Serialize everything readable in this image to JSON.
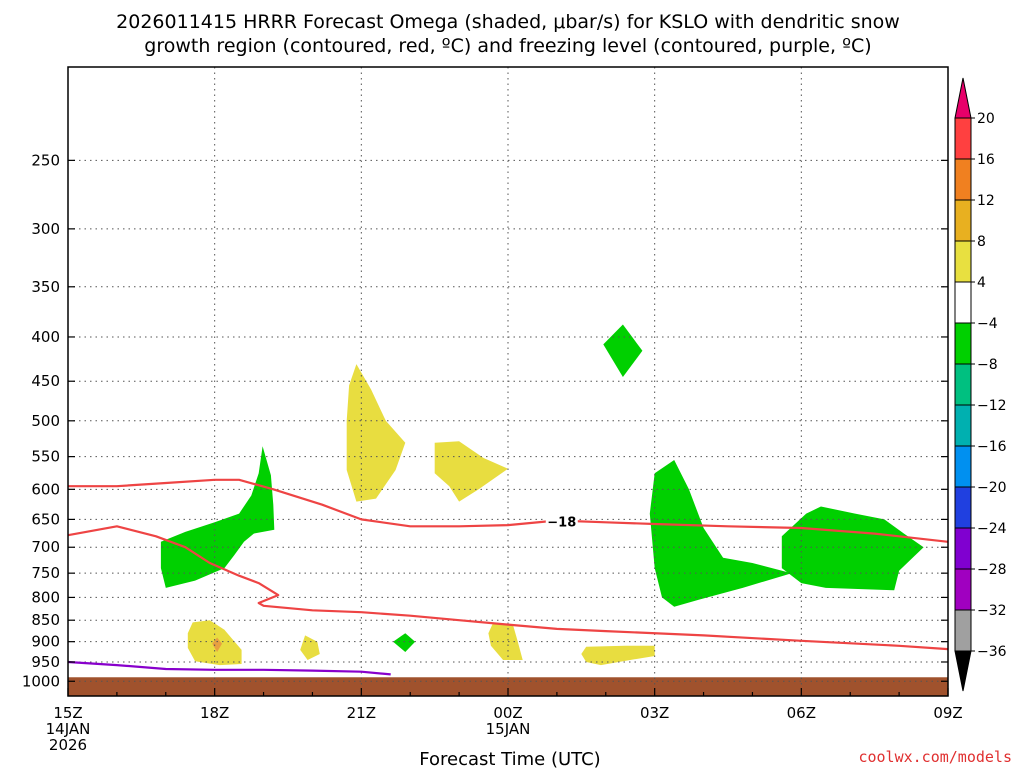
{
  "chart_data": {
    "type": "heatmap",
    "title_lines": [
      "2026011415 HRRR Forecast Omega (shaded, μbar/s) for KSLO with dendritic snow",
      "growth region (contoured, red, ºC) and freezing level (contoured, purple, ºC)"
    ],
    "xlabel": "Forecast Time (UTC)",
    "credit": "coolwx.com/models",
    "x_ticks": [
      {
        "h": 0,
        "lines": [
          "15Z",
          "14JAN",
          "2026"
        ]
      },
      {
        "h": 3,
        "lines": [
          "18Z"
        ]
      },
      {
        "h": 6,
        "lines": [
          "21Z"
        ]
      },
      {
        "h": 9,
        "lines": [
          "00Z",
          "15JAN"
        ]
      },
      {
        "h": 12,
        "lines": [
          "03Z"
        ]
      },
      {
        "h": 15,
        "lines": [
          "06Z"
        ]
      },
      {
        "h": 18,
        "lines": [
          "09Z"
        ]
      }
    ],
    "xlim": [
      0,
      18
    ],
    "ylim": [
      1040,
      195
    ],
    "y_scale": "log",
    "y_ticks": [
      250,
      300,
      350,
      400,
      450,
      500,
      550,
      600,
      650,
      700,
      750,
      800,
      850,
      900,
      950,
      1000
    ],
    "grid": true,
    "colorbar": {
      "labels": [
        "20",
        "16",
        "12",
        "8",
        "4",
        "−4",
        "−8",
        "−12",
        "−16",
        "−20",
        "−24",
        "−28",
        "−32",
        "−36"
      ],
      "colors": [
        "#ff4040",
        "#f08020",
        "#e8b020",
        "#e8e040",
        "#ffffff",
        "#00d000",
        "#00c080",
        "#00b0b0",
        "#0090f0",
        "#2040e0",
        "#8000d0",
        "#a000c0",
        "#a0a0a0"
      ],
      "top_color": "#e8006a",
      "bottom_color": "#000000"
    },
    "colors": {
      "ground": "#a0522d",
      "ascent": "#00d000",
      "descent": "#e8dd40",
      "descent_strong": "#e8a040",
      "dgz_contour": "#ee4444",
      "freezing_contour": "#8800cc"
    },
    "omega_areas": [
      {
        "cat": "ascent",
        "pts": [
          [
            1.9,
            690
          ],
          [
            2.4,
            672
          ],
          [
            3.0,
            655
          ],
          [
            3.5,
            640
          ],
          [
            3.75,
            610
          ],
          [
            3.9,
            575
          ],
          [
            3.98,
            535
          ],
          [
            4.15,
            578
          ],
          [
            4.2,
            625
          ],
          [
            4.22,
            668
          ],
          [
            3.8,
            675
          ],
          [
            3.6,
            690
          ],
          [
            3.4,
            715
          ],
          [
            3.2,
            740
          ],
          [
            2.6,
            765
          ],
          [
            2.0,
            780
          ],
          [
            1.9,
            740
          ]
        ]
      },
      {
        "cat": "ascent",
        "pts": [
          [
            10.95,
            408
          ],
          [
            11.35,
            387
          ],
          [
            11.75,
            415
          ],
          [
            11.35,
            445
          ]
        ]
      },
      {
        "cat": "ascent",
        "pts": [
          [
            6.9,
            880
          ],
          [
            7.1,
            900
          ],
          [
            6.9,
            925
          ],
          [
            6.65,
            900
          ]
        ]
      },
      {
        "cat": "ascent",
        "pts": [
          [
            12.0,
            575
          ],
          [
            12.4,
            555
          ],
          [
            12.7,
            600
          ],
          [
            13.0,
            665
          ],
          [
            13.4,
            720
          ],
          [
            14.0,
            730
          ],
          [
            14.8,
            750
          ],
          [
            13.8,
            780
          ],
          [
            12.9,
            805
          ],
          [
            12.4,
            820
          ],
          [
            12.15,
            800
          ],
          [
            12.0,
            740
          ],
          [
            11.9,
            640
          ]
        ]
      },
      {
        "cat": "ascent",
        "pts": [
          [
            15.1,
            640
          ],
          [
            15.4,
            628
          ],
          [
            16.1,
            640
          ],
          [
            16.7,
            650
          ],
          [
            17.1,
            675
          ],
          [
            17.5,
            700
          ],
          [
            17.0,
            745
          ],
          [
            16.9,
            785
          ],
          [
            15.5,
            780
          ],
          [
            15.0,
            770
          ],
          [
            14.6,
            740
          ],
          [
            14.6,
            680
          ]
        ]
      },
      {
        "cat": "descent",
        "pts": [
          [
            5.9,
            430
          ],
          [
            6.2,
            460
          ],
          [
            6.5,
            500
          ],
          [
            6.9,
            530
          ],
          [
            6.7,
            570
          ],
          [
            6.3,
            615
          ],
          [
            5.9,
            620
          ],
          [
            5.7,
            570
          ],
          [
            5.7,
            500
          ],
          [
            5.75,
            455
          ]
        ]
      },
      {
        "cat": "descent",
        "pts": [
          [
            7.5,
            530
          ],
          [
            8.0,
            528
          ],
          [
            8.5,
            552
          ],
          [
            9.0,
            568
          ],
          [
            8.4,
            600
          ],
          [
            8.0,
            620
          ],
          [
            7.8,
            595
          ],
          [
            7.5,
            575
          ]
        ]
      },
      {
        "cat": "descent",
        "pts": [
          [
            2.55,
            855
          ],
          [
            2.9,
            850
          ],
          [
            3.2,
            872
          ],
          [
            3.55,
            920
          ],
          [
            3.55,
            955
          ],
          [
            3.1,
            958
          ],
          [
            2.6,
            948
          ],
          [
            2.45,
            915
          ],
          [
            2.45,
            880
          ]
        ]
      },
      {
        "cat": "descent",
        "pts": [
          [
            4.85,
            885
          ],
          [
            5.1,
            900
          ],
          [
            5.15,
            930
          ],
          [
            4.9,
            945
          ],
          [
            4.75,
            920
          ]
        ]
      },
      {
        "cat": "descent",
        "pts": [
          [
            8.7,
            855
          ],
          [
            9.1,
            860
          ],
          [
            9.2,
            900
          ],
          [
            9.3,
            945
          ],
          [
            8.9,
            945
          ],
          [
            8.65,
            910
          ],
          [
            8.6,
            880
          ]
        ]
      },
      {
        "cat": "descent",
        "pts": [
          [
            10.6,
            912
          ],
          [
            11.4,
            910
          ],
          [
            12.0,
            910
          ],
          [
            12.0,
            935
          ],
          [
            11.5,
            945
          ],
          [
            10.9,
            958
          ],
          [
            10.6,
            950
          ],
          [
            10.5,
            930
          ]
        ]
      },
      {
        "cat": "descent_strong",
        "pts": [
          [
            3.05,
            890
          ],
          [
            3.15,
            905
          ],
          [
            3.05,
            925
          ],
          [
            2.95,
            905
          ]
        ]
      }
    ],
    "contours": [
      {
        "name": "dgz_upper",
        "cat": "dgz_contour",
        "pts": [
          [
            0,
            595
          ],
          [
            1.0,
            595
          ],
          [
            2.0,
            590
          ],
          [
            3.0,
            585
          ],
          [
            3.5,
            585
          ],
          [
            4.2,
            600
          ],
          [
            5.2,
            625
          ],
          [
            6.0,
            650
          ],
          [
            7.0,
            662
          ],
          [
            8.0,
            662
          ],
          [
            9.0,
            660
          ],
          [
            10.0,
            652
          ],
          [
            11.0,
            655
          ],
          [
            12.0,
            658
          ],
          [
            13.5,
            662
          ],
          [
            15.0,
            665
          ],
          [
            16.5,
            675
          ],
          [
            18.0,
            690
          ]
        ]
      },
      {
        "name": "dgz_lower",
        "cat": "dgz_contour",
        "pts": [
          [
            0,
            678
          ],
          [
            1.0,
            662
          ],
          [
            1.8,
            680
          ],
          [
            2.4,
            700
          ],
          [
            2.9,
            730
          ],
          [
            3.5,
            755
          ],
          [
            3.9,
            770
          ],
          [
            4.3,
            795
          ],
          [
            3.9,
            812
          ],
          [
            4.0,
            818
          ],
          [
            5.0,
            828
          ],
          [
            6.0,
            832
          ],
          [
            7.0,
            840
          ],
          [
            8.0,
            850
          ],
          [
            9.0,
            860
          ],
          [
            10.0,
            870
          ],
          [
            11.0,
            875
          ],
          [
            13.0,
            885
          ],
          [
            15.0,
            898
          ],
          [
            17.0,
            910
          ],
          [
            18.0,
            918
          ]
        ]
      },
      {
        "name": "freezing_level",
        "cat": "freezing_contour",
        "pts": [
          [
            0,
            950
          ],
          [
            1.0,
            958
          ],
          [
            2.0,
            968
          ],
          [
            3.0,
            970
          ],
          [
            4.0,
            970
          ],
          [
            5.0,
            972
          ],
          [
            6.0,
            975
          ],
          [
            6.6,
            982
          ]
        ]
      }
    ],
    "contour_label": {
      "text": "−18",
      "h": 10.1,
      "p": 654
    }
  }
}
